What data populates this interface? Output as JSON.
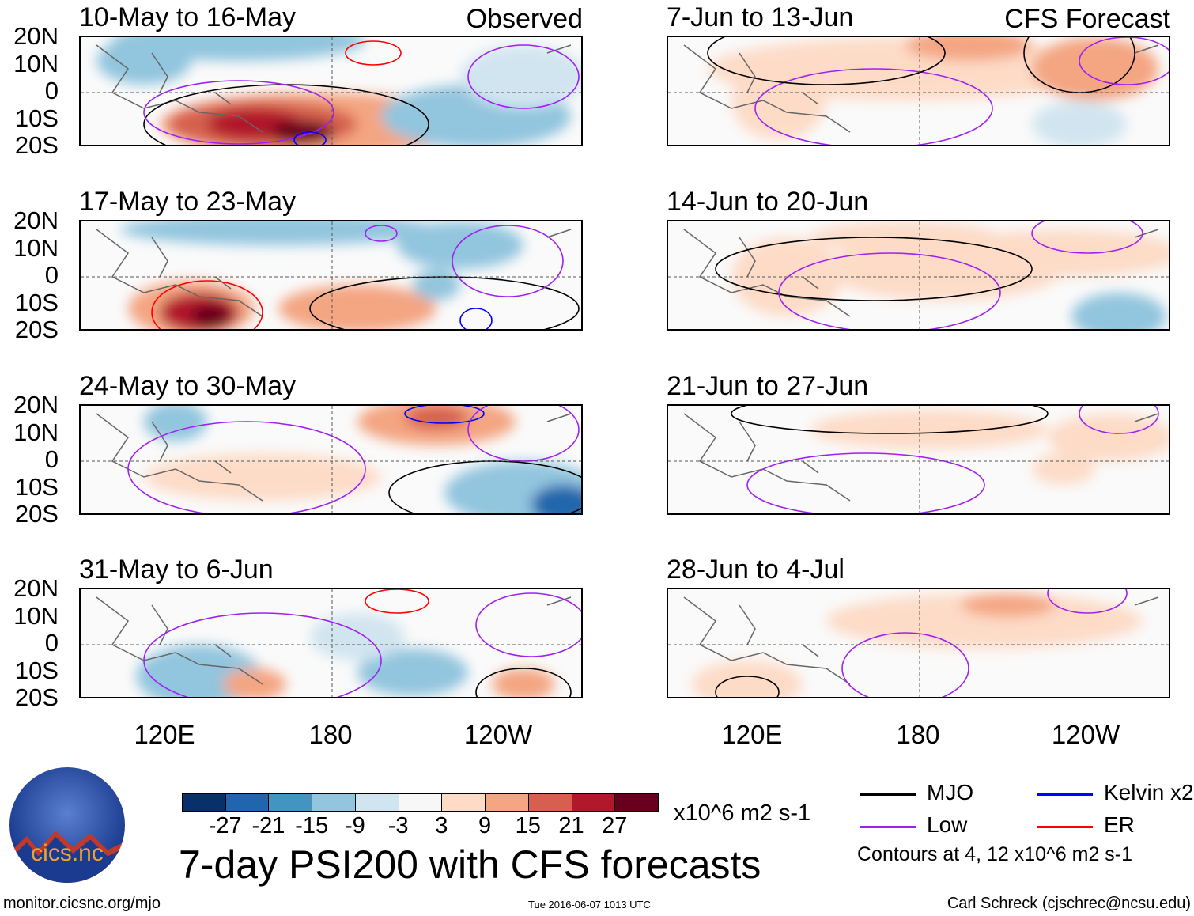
{
  "chart_data": {
    "type": "heatmap",
    "title": "7-day PSI200 with CFS forecasts",
    "units": "x10^6 m2 s-1",
    "column_headers": [
      "Observed",
      "CFS Forecast"
    ],
    "lat_ticks": [
      "20N",
      "10N",
      "0",
      "10S",
      "20S"
    ],
    "lon_ticks": [
      "120E",
      "180",
      "120W"
    ],
    "panels": [
      {
        "title": "10-May to 16-May",
        "kind": "Observed"
      },
      {
        "title": "17-May to 23-May",
        "kind": "Observed"
      },
      {
        "title": "24-May to 30-May",
        "kind": "Observed"
      },
      {
        "title": "31-May to 6-Jun",
        "kind": "Observed"
      },
      {
        "title": "7-Jun to 13-Jun",
        "kind": "CFS Forecast"
      },
      {
        "title": "14-Jun to 20-Jun",
        "kind": "CFS Forecast"
      },
      {
        "title": "21-Jun to 27-Jun",
        "kind": "CFS Forecast"
      },
      {
        "title": "28-Jun to 4-Jul",
        "kind": "CFS Forecast"
      }
    ],
    "colorbar": {
      "levels": [
        "-27",
        "-21",
        "-15",
        "-9",
        "-3",
        "3",
        "9",
        "15",
        "21",
        "27"
      ],
      "colors": [
        "#08306b",
        "#2166ac",
        "#4393c3",
        "#92c5de",
        "#d1e5f0",
        "#f7f7f7",
        "#fddbc7",
        "#f4a582",
        "#d6604d",
        "#b2182b",
        "#67001f"
      ]
    },
    "legend": [
      {
        "label": "MJO",
        "color": "#000000"
      },
      {
        "label": "Kelvin x2",
        "color": "#0000ff"
      },
      {
        "label": "Low",
        "color": "#a020f0"
      },
      {
        "label": "ER",
        "color": "#ff0000"
      }
    ],
    "contour_note": "Contours at 4, 12 x10^6 m2 s-1"
  },
  "logo_text": "cics.nc",
  "footer": {
    "url": "monitor.cicsnc.org/mjo",
    "timestamp": "Tue 2016-06-07 1013 UTC",
    "author": "Carl Schreck (cjschrec@ncsu.edu)"
  }
}
